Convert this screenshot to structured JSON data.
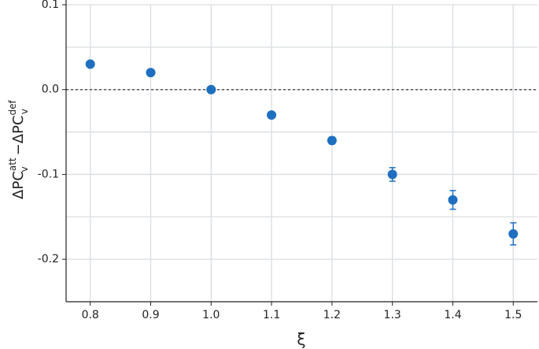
{
  "chart_data": {
    "type": "scatter",
    "xlabel": "ξ",
    "ylabel": {
      "left": {
        "base": "ΔPC",
        "sub": "v",
        "sup": "att"
      },
      "operator": "−",
      "right": {
        "base": "ΔPC",
        "sub": "v",
        "sup": "def"
      }
    },
    "x": [
      0.8,
      0.9,
      1.0,
      1.1,
      1.2,
      1.3,
      1.4,
      1.5
    ],
    "series": [
      {
        "color": "#1f6fc0",
        "values": [
          0.03,
          0.02,
          0.0,
          -0.03,
          -0.06,
          -0.1,
          -0.13,
          -0.17
        ],
        "errors": [
          0.002,
          0.002,
          0.001,
          0.002,
          0.004,
          0.008,
          0.011,
          0.013
        ]
      }
    ],
    "xlim": [
      0.76,
      1.54
    ],
    "ylim": [
      -0.25,
      0.1
    ],
    "xticks": [
      0.8,
      0.9,
      {
        "value": 1.0,
        "label": "1.0"
      },
      1.1,
      1.2,
      1.3,
      1.4,
      1.5
    ],
    "yticks": [
      0.1,
      {
        "value": 0,
        "label": "0.0"
      },
      -0.1,
      -0.2
    ],
    "y_minor_grid": [
      0.05,
      -0.05,
      -0.15
    ],
    "hline": 0,
    "grid": true
  }
}
